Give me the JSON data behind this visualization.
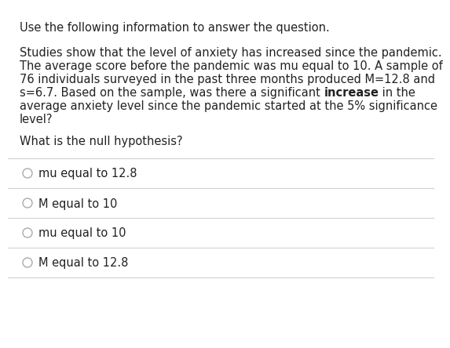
{
  "header": "Use the following information to answer the question.",
  "body_line1": "Studies show that the level of anxiety has increased since the pandemic.",
  "body_line2": "The average score before the pandemic was mu equal to 10. A sample of",
  "body_line3": "76 individuals surveyed in the past three months produced M=12.8 and",
  "body_line4_pre": "s=6.7. Based on the sample, was there a significant ",
  "body_line4_bold": "increase",
  "body_line4_post": " in the",
  "body_line5": "average anxiety level since the pandemic started at the 5% significance",
  "body_line6": "level?",
  "question": "What is the null hypothesis?",
  "options": [
    "mu equal to 12.8",
    "M equal to 10",
    "mu equal to 10",
    "M equal to 12.8"
  ],
  "bg_color": "#ffffff",
  "text_color": "#222222",
  "line_color": "#d0d0d0",
  "circle_color": "#aaaaaa",
  "font_size_header": 10.5,
  "font_size_body": 10.5,
  "font_size_question": 10.5,
  "font_size_option": 10.5
}
